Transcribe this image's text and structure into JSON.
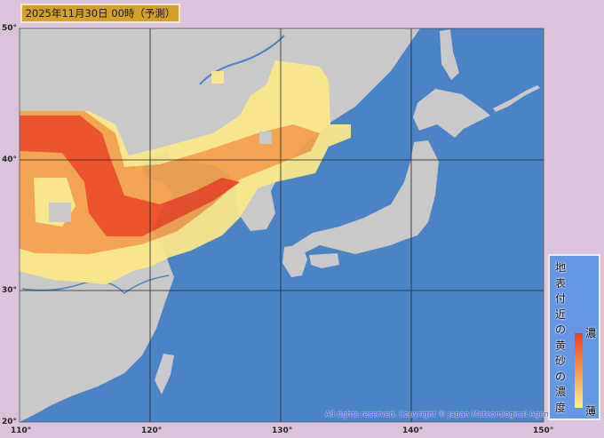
{
  "title": "2025年11月30日 00時（予測）",
  "map": {
    "ocean_color": "#4a84c4",
    "land_color": "#c9c9c9",
    "lon_labels": [
      "110°",
      "120°",
      "130°",
      "140°",
      "150°"
    ],
    "lat_labels": [
      "50°",
      "40°",
      "30°",
      "20°"
    ],
    "copyright": "All rights reserved. Copyright © Japan Meteorological Agency"
  },
  "legend": {
    "title_chars": [
      "地",
      "表",
      "付",
      "近",
      "の",
      "黄",
      "砂",
      "の",
      "濃",
      "度"
    ],
    "high_label": "濃",
    "low_label": "薄",
    "colors": [
      "#f03c1e",
      "#f7a24a",
      "#fff08a"
    ]
  }
}
